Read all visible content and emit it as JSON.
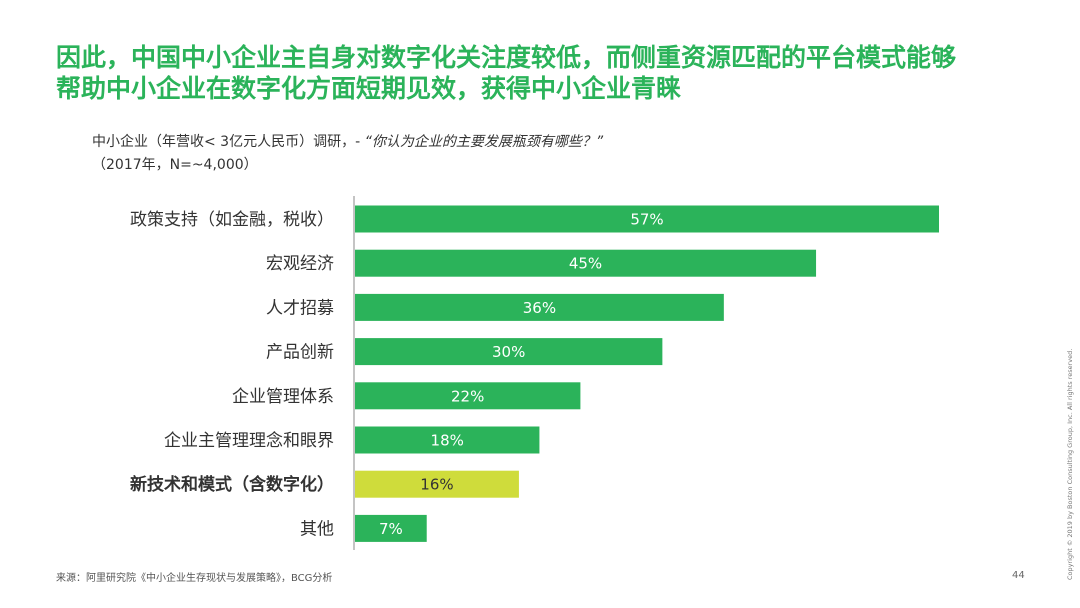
{
  "title": {
    "line1": "因此，中国中小企业主自身对数字化关注度较低，而侧重资源匹配的平台模式能够",
    "line2": "帮助中小企业在数字化方面短期见效，获得中小企业青睐"
  },
  "subtitle": {
    "prefix": "中小企业（年营收< 3亿元人民币）调研，- ",
    "question": "“你认为企业的主要发展瓶颈有哪些？”",
    "line2": "（2017年，N=~4,000）"
  },
  "chart_data": {
    "type": "bar",
    "orientation": "horizontal",
    "categories": [
      "政策支持（如金融，税收）",
      "宏观经济",
      "人才招募",
      "产品创新",
      "企业管理体系",
      "企业主管理理念和眼界",
      "新技术和模式（含数字化）",
      "其他"
    ],
    "values": [
      57,
      45,
      36,
      30,
      22,
      18,
      16,
      7
    ],
    "labels": [
      "57%",
      "45%",
      "36%",
      "30%",
      "22%",
      "18%",
      "16%",
      "7%"
    ],
    "highlight_index": 6,
    "xlim": [
      0,
      57
    ],
    "colors": {
      "bar": "#2bb35a",
      "highlight": "#cfdc3b",
      "label": "#ffffff",
      "highlight_label": "#333333"
    }
  },
  "footer": {
    "source": "来源：阿里研究院《中小企业生存现状与发展策略》，BCG分析",
    "page": "44",
    "copyright": "Copyright © 2019 by Boston Consulting Group, Inc. All rights reserved."
  }
}
